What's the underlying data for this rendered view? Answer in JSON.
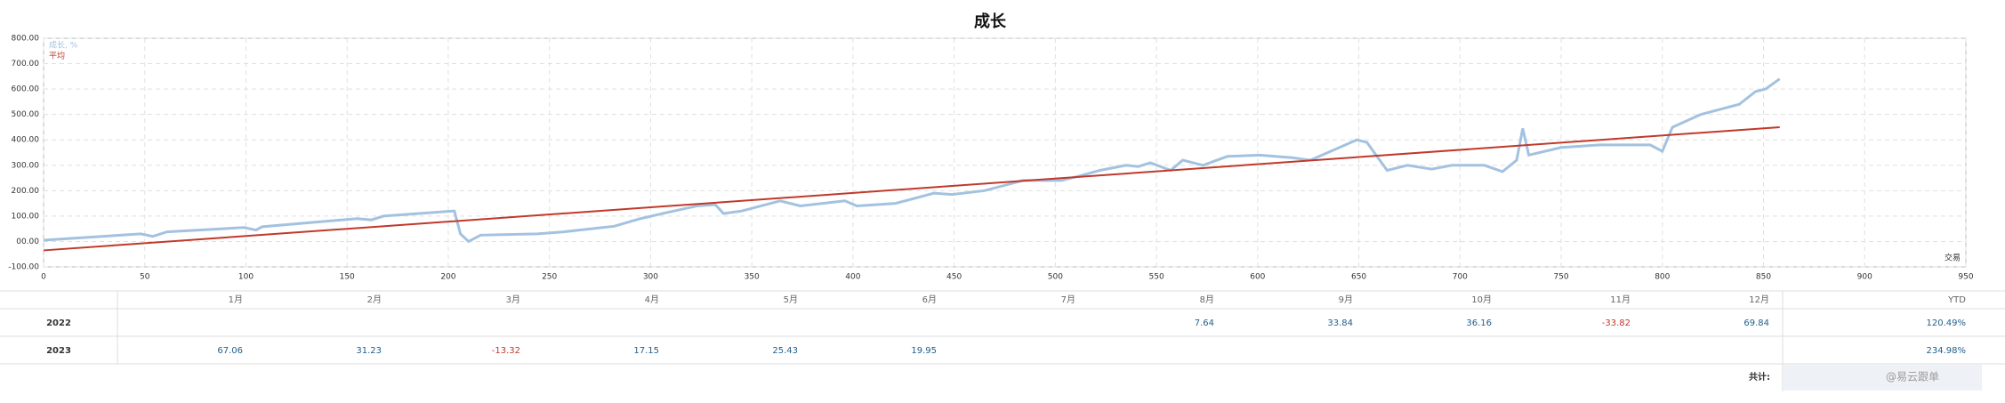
{
  "chart_data": {
    "type": "line",
    "title": "成长",
    "x_label": "交易",
    "xlim": [
      0,
      950
    ],
    "xticks": [
      0,
      50,
      100,
      150,
      200,
      250,
      300,
      350,
      400,
      450,
      500,
      550,
      600,
      650,
      700,
      750,
      800,
      850,
      900,
      950
    ],
    "ylim": [
      -100,
      800
    ],
    "yticks": [
      {
        "value": -100,
        "label": "-100.00"
      },
      {
        "value": 0,
        "label": "00.00"
      },
      {
        "value": 100,
        "label": "100.00"
      },
      {
        "value": 200,
        "label": "200.00"
      },
      {
        "value": 300,
        "label": "300.00"
      },
      {
        "value": 400,
        "label": "400.00"
      },
      {
        "value": 500,
        "label": "500.00"
      },
      {
        "value": 600,
        "label": "600.00"
      },
      {
        "value": 700,
        "label": "700.00"
      },
      {
        "value": 800,
        "label": "800.00"
      }
    ],
    "grid": true,
    "legend": "top-left",
    "series": [
      {
        "name": "成长, %",
        "color": "#a3c2e0",
        "x": [
          0,
          48,
          54,
          61,
          99,
          105,
          108,
          155,
          162,
          168,
          203,
          206,
          210,
          216,
          244,
          257,
          282,
          295,
          307,
          323,
          332,
          336,
          345,
          364,
          374,
          396,
          402,
          421,
          440,
          449,
          465,
          484,
          503,
          513,
          522,
          535,
          541,
          547,
          557,
          563,
          573,
          585,
          601,
          617,
          626,
          649,
          654,
          664,
          674,
          686,
          696,
          712,
          721,
          728,
          731,
          734,
          750,
          769,
          794,
          800,
          805,
          819,
          838,
          846,
          851,
          858
        ],
        "values": [
          5,
          30,
          20,
          38,
          55,
          45,
          58,
          90,
          85,
          100,
          120,
          30,
          0,
          25,
          30,
          38,
          60,
          90,
          112,
          140,
          145,
          110,
          120,
          160,
          140,
          160,
          140,
          150,
          190,
          185,
          200,
          240,
          240,
          260,
          280,
          300,
          295,
          310,
          280,
          320,
          300,
          335,
          340,
          330,
          320,
          400,
          390,
          280,
          300,
          285,
          300,
          300,
          275,
          320,
          445,
          340,
          370,
          380,
          380,
          355,
          450,
          500,
          540,
          590,
          600,
          640
        ]
      },
      {
        "name": "平均",
        "color": "#c0392b",
        "x": [
          0,
          858
        ],
        "values": [
          -35,
          450
        ]
      }
    ]
  },
  "table": {
    "header": [
      "1月",
      "2月",
      "3月",
      "4月",
      "5月",
      "6月",
      "7月",
      "8月",
      "9月",
      "10月",
      "11月",
      "12月",
      "YTD"
    ],
    "rows": [
      {
        "year": "2022",
        "cells": [
          null,
          null,
          null,
          null,
          null,
          null,
          null,
          "7.64",
          "33.84",
          "36.16",
          "-33.82",
          "69.84"
        ],
        "ytd": "120.49%"
      },
      {
        "year": "2023",
        "cells": [
          "67.06",
          "31.23",
          "-13.32",
          "17.15",
          "25.43",
          "19.95",
          null,
          null,
          null,
          null,
          null,
          null
        ],
        "ytd": "234.98%"
      }
    ],
    "total_label": "共计:"
  },
  "watermark": "@易云跟单"
}
